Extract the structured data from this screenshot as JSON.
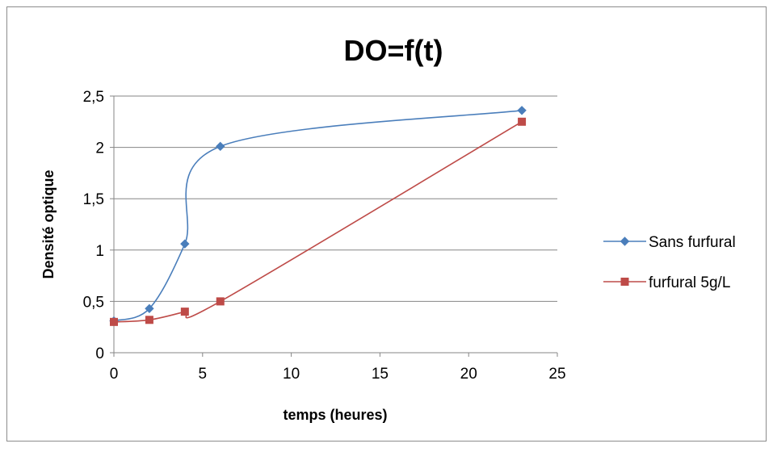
{
  "chart_data": {
    "type": "line",
    "title": "DO=f(t)",
    "xlabel": "temps (heures)",
    "ylabel": "Densité optique",
    "xlim": [
      0,
      25
    ],
    "ylim": [
      0,
      2.5
    ],
    "x_ticks": [
      "0",
      "5",
      "10",
      "15",
      "20",
      "25"
    ],
    "y_ticks": [
      "0",
      "0,5",
      "1",
      "1,5",
      "2",
      "2,5"
    ],
    "grid": "horizontal",
    "legend_position": "right",
    "series": [
      {
        "name": "Sans furfural",
        "color": "#4a7ebb",
        "marker": "diamond",
        "x": [
          0,
          2,
          4,
          6,
          23
        ],
        "y": [
          0.31,
          0.43,
          1.06,
          2.01,
          2.36
        ]
      },
      {
        "name": "furfural 5g/L",
        "color": "#be4b48",
        "marker": "square",
        "x": [
          0,
          2,
          4,
          6,
          23
        ],
        "y": [
          0.3,
          0.32,
          0.4,
          0.5,
          2.25
        ]
      }
    ]
  }
}
